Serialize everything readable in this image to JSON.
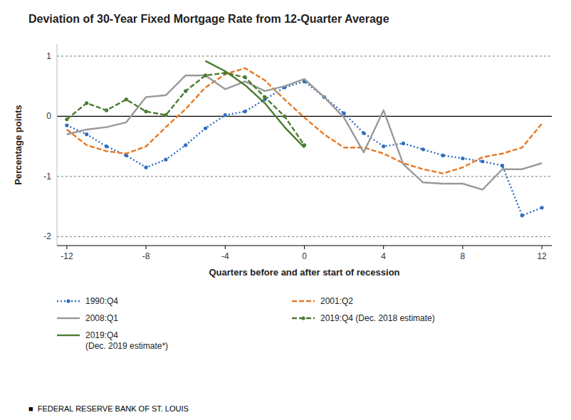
{
  "chart_data": {
    "type": "line",
    "title": "Deviation of 30-Year Fixed Mortgage Rate from 12-Quarter Average",
    "x_label": "Quarters before and after start of recession",
    "y_label": "Percentage points",
    "annotations": [
      "■  FEDERAL RESERVE BANK OF ST. LOUIS"
    ],
    "xlim": [
      -12.5,
      12.5
    ],
    "ylim": [
      -2.15,
      1.2
    ],
    "xticks": [
      -12,
      -8,
      -4,
      0,
      4,
      8,
      12
    ],
    "yticks": [
      -2,
      -1,
      0,
      1
    ],
    "grid": true,
    "legend": "bottom",
    "series": [
      {
        "name": "1990:Q4",
        "color": "#2E6EBF",
        "line_style": "dotted",
        "marker": "circle",
        "x": [
          -12,
          -11,
          -10,
          -9,
          -8,
          -7,
          -6,
          -5,
          -4,
          -3,
          -2,
          -1,
          0,
          1,
          2,
          3,
          4,
          5,
          6,
          7,
          8,
          9,
          10,
          11,
          12
        ],
        "values": [
          -0.15,
          -0.3,
          -0.5,
          -0.65,
          -0.85,
          -0.72,
          -0.48,
          -0.2,
          0.02,
          0.08,
          0.28,
          0.48,
          0.58,
          0.32,
          0.05,
          -0.28,
          -0.5,
          -0.45,
          -0.55,
          -0.65,
          -0.7,
          -0.75,
          -0.82,
          -1.65,
          -1.52
        ]
      },
      {
        "name": "2001:Q2",
        "color": "#E87722",
        "line_style": "dashed",
        "x": [
          -12,
          -11,
          -10,
          -9,
          -8,
          -7,
          -6,
          -5,
          -4,
          -3,
          -2,
          -1,
          0,
          1,
          2,
          3,
          4,
          5,
          6,
          7,
          8,
          9,
          10,
          11,
          12
        ],
        "values": [
          -0.22,
          -0.48,
          -0.58,
          -0.62,
          -0.5,
          -0.18,
          0.12,
          0.48,
          0.7,
          0.8,
          0.6,
          0.28,
          -0.02,
          -0.3,
          -0.52,
          -0.52,
          -0.62,
          -0.78,
          -0.88,
          -0.95,
          -0.85,
          -0.68,
          -0.62,
          -0.52,
          -0.12
        ]
      },
      {
        "name": "2008:Q1",
        "color": "#999999",
        "line_style": "solid",
        "x": [
          -12,
          -11,
          -10,
          -9,
          -8,
          -7,
          -6,
          -5,
          -4,
          -3,
          -2,
          -1,
          0,
          1,
          2,
          3,
          4,
          5,
          6,
          7,
          8,
          9,
          10,
          11,
          12
        ],
        "values": [
          -0.3,
          -0.22,
          -0.18,
          -0.1,
          0.32,
          0.35,
          0.68,
          0.68,
          0.45,
          0.58,
          0.42,
          0.5,
          0.62,
          0.32,
          -0.02,
          -0.6,
          0.1,
          -0.8,
          -1.1,
          -1.12,
          -1.12,
          -1.22,
          -0.88,
          -0.88,
          -0.78
        ]
      },
      {
        "name": "2019:Q4 (Dec. 2018 estimate)",
        "color": "#4A7C2F",
        "line_style": "dashed",
        "marker": "circle",
        "x": [
          -12,
          -11,
          -10,
          -9,
          -8,
          -7,
          -6,
          -5,
          -4,
          -3,
          -2,
          -1,
          0
        ],
        "values": [
          -0.05,
          0.22,
          0.1,
          0.28,
          0.08,
          0.02,
          0.42,
          0.68,
          0.72,
          0.65,
          0.32,
          0.0,
          -0.48
        ]
      },
      {
        "name": "2019:Q4\n(Dec. 2019 estimate*)",
        "color": "#4A7C2F",
        "line_style": "solid",
        "x": [
          -5,
          -4,
          -3,
          -2,
          -1,
          0
        ],
        "values": [
          0.92,
          0.75,
          0.52,
          0.22,
          -0.18,
          -0.52
        ]
      }
    ]
  }
}
